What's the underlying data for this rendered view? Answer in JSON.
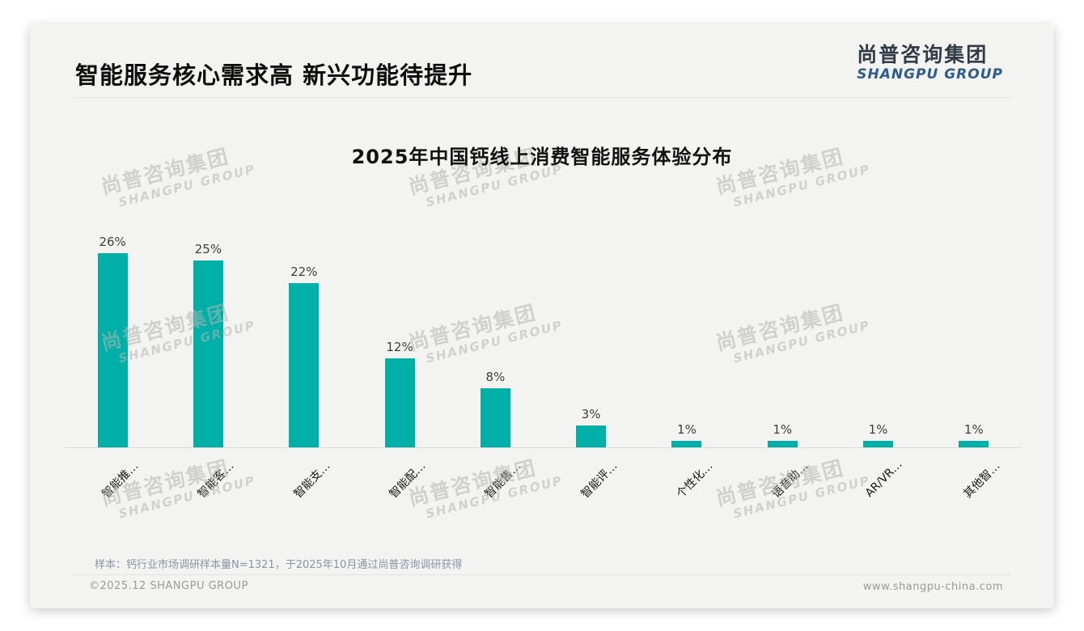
{
  "header": {
    "title": "智能服务核心需求高 新兴功能待提升"
  },
  "logo": {
    "zh": "尚普咨询集团",
    "en": "SHANGPU GROUP"
  },
  "watermark": {
    "zh": "尚普咨询集团",
    "en": "SHANGPU GROUP"
  },
  "chart_data": {
    "type": "bar",
    "title": "2025年中国钙线上消费智能服务体验分布",
    "categories": [
      "智能推…",
      "智能客…",
      "智能支…",
      "智能配…",
      "智能售…",
      "智能评…",
      "个性化…",
      "语音助…",
      "AR/VR…",
      "其他智…"
    ],
    "values": [
      26,
      25,
      22,
      12,
      8,
      3,
      1,
      1,
      1,
      1
    ],
    "value_labels": [
      "26%",
      "25%",
      "22%",
      "12%",
      "8%",
      "3%",
      "1%",
      "1%",
      "1%",
      "1%"
    ],
    "unit": "%",
    "xlabel": "",
    "ylabel": "",
    "ylim": [
      0,
      27
    ],
    "grid": false,
    "legend": false,
    "bar_color": "#00b0a8",
    "axis_label_rotation_deg": 45
  },
  "footnote": "样本：钙行业市场调研样本量N=1321，于2025年10月通过尚普咨询调研获得",
  "footer": {
    "copyright": "©2025.12 SHANGPU GROUP",
    "website": "www.shangpu-china.com"
  },
  "colors": {
    "bar": "#00b0a8",
    "logo_blue": "#2d5b8e",
    "card_background": "#f3f3f1",
    "axis_line": "#d8d8d6"
  }
}
